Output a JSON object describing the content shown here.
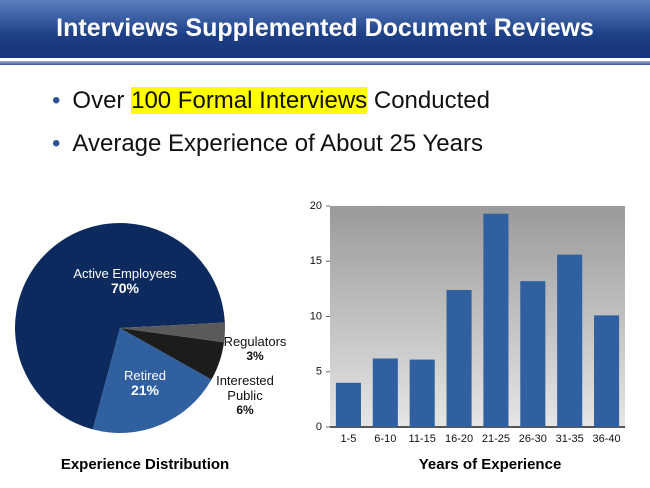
{
  "slide": {
    "title": "Interviews Supplemented Document Reviews",
    "bullets": [
      {
        "before": "Over ",
        "highlight": "100 Formal Interviews",
        "after": " Conducted"
      },
      {
        "text": "Average Experience of About 25 Years"
      }
    ]
  },
  "chart_data": [
    {
      "type": "pie",
      "title": "Experience Distribution",
      "categories": [
        "Active Employees",
        "Retired",
        "Interested Public",
        "Regulators"
      ],
      "values": [
        70,
        21,
        6,
        3
      ],
      "value_labels": [
        "70%",
        "21%",
        "6%",
        "3%"
      ],
      "colors": [
        "#0c2a5e",
        "#30609f",
        "#1c1c1c",
        "#5a5a5a"
      ]
    },
    {
      "type": "bar",
      "xlabel": "Years of Experience",
      "categories": [
        "1-5",
        "6-10",
        "11-15",
        "16-20",
        "21-25",
        "26-30",
        "31-35",
        "36-40"
      ],
      "values": [
        4,
        6.2,
        6.1,
        12.4,
        19.3,
        13.2,
        15.6,
        10.1
      ],
      "color": "#30609f",
      "ylim": [
        0,
        20
      ],
      "yticks": [
        0,
        5,
        10,
        15,
        20
      ]
    }
  ]
}
